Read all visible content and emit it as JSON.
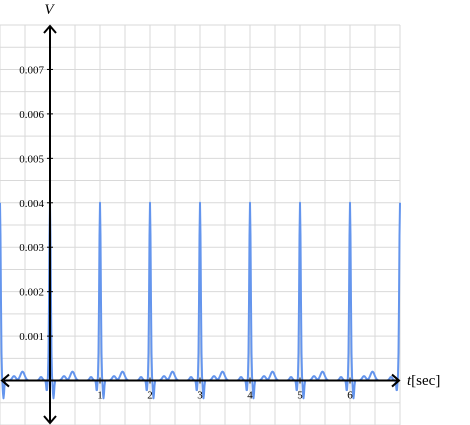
{
  "chart_data": {
    "type": "line",
    "title": "",
    "xlabel_var": "t",
    "xlabel_unit": "[sec]",
    "ylabel": "V",
    "xlim": [
      -1,
      7
    ],
    "ylim": [
      -0.001,
      0.008
    ],
    "grid": true,
    "x_ticks": [
      1,
      2,
      3,
      4,
      5,
      6
    ],
    "y_ticks": [
      0.001,
      0.002,
      0.003,
      0.004,
      0.005,
      0.006,
      0.007
    ],
    "x_tick_labels": [
      "1",
      "2",
      "3",
      "4",
      "5",
      "6"
    ],
    "y_tick_labels": [
      "0.001",
      "0.002",
      "0.003",
      "0.004",
      "0.005",
      "0.006",
      "0.007"
    ],
    "series": [
      {
        "period": 1,
        "peak_times": [
          -1,
          0,
          1,
          2,
          3,
          4,
          5,
          6,
          7
        ],
        "peak_value": 0.004,
        "trough_value": -0.0004,
        "wave_value": 0.0002,
        "baseline_value": 0.0,
        "color": "#6495ed"
      }
    ],
    "axis_color": "#000000",
    "grid_color": "#d9d9d9"
  }
}
